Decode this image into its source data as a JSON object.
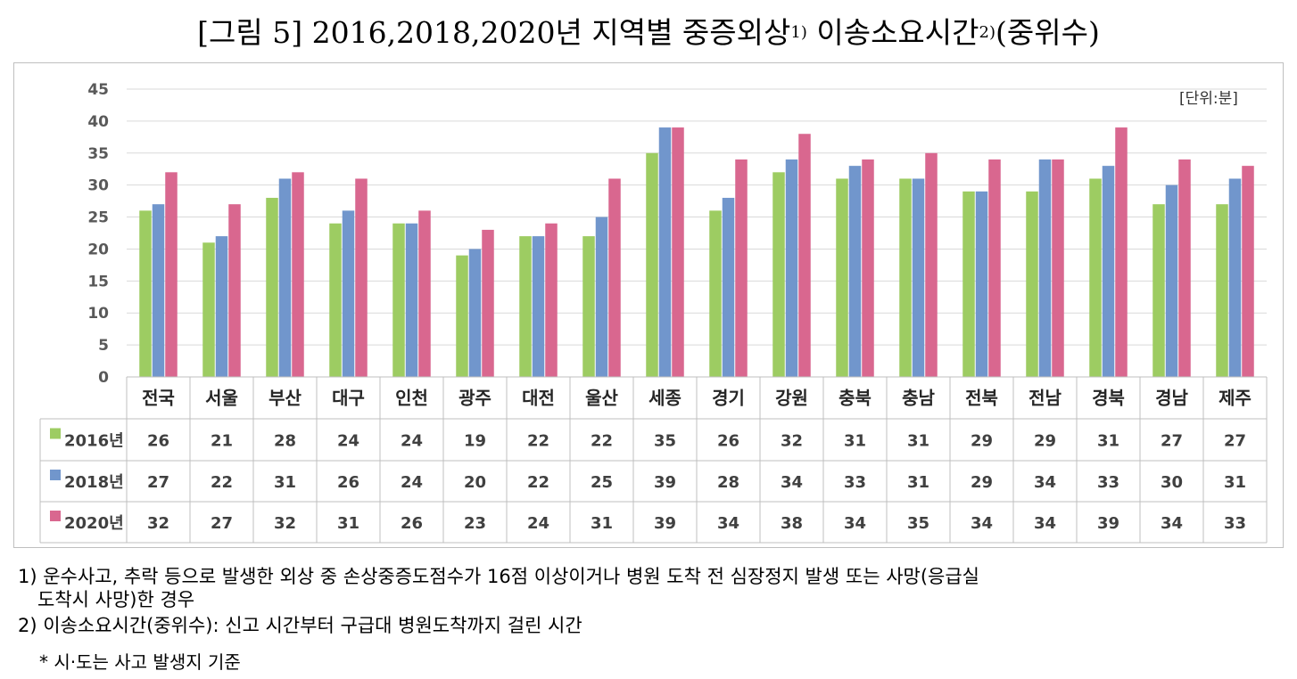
{
  "page": {
    "title_main": "[그림 5] 2016,2018,2020년 지역별 중증외상",
    "title_sup1": "1)",
    "title_mid": " 이송소요시간",
    "title_sup2": "2)",
    "title_end": "(중위수)",
    "unit": "[단위:분]"
  },
  "chart_data": {
    "type": "bar",
    "title": "[그림 5] 2016,2018,2020년 지역별 중증외상1) 이송소요시간2)(중위수)",
    "ylim": [
      0,
      45
    ],
    "yticks": [
      0,
      5,
      10,
      15,
      20,
      25,
      30,
      35,
      40,
      45
    ],
    "grid": true,
    "categories": [
      "전국",
      "서울",
      "부산",
      "대구",
      "인천",
      "광주",
      "대전",
      "울산",
      "세종",
      "경기",
      "강원",
      "충북",
      "충남",
      "전북",
      "전남",
      "경북",
      "경남",
      "제주"
    ],
    "series": [
      {
        "name": "2016년",
        "color": "#9dcc62",
        "values": [
          26,
          21,
          28,
          24,
          24,
          19,
          22,
          22,
          35,
          26,
          32,
          31,
          31,
          29,
          29,
          31,
          27,
          27
        ]
      },
      {
        "name": "2018년",
        "color": "#7196cc",
        "values": [
          27,
          22,
          31,
          26,
          24,
          20,
          22,
          25,
          39,
          28,
          34,
          33,
          31,
          29,
          34,
          33,
          30,
          31
        ]
      },
      {
        "name": "2020년",
        "color": "#d9678f",
        "values": [
          32,
          27,
          32,
          31,
          26,
          23,
          24,
          31,
          39,
          34,
          38,
          34,
          35,
          34,
          34,
          39,
          34,
          33
        ]
      }
    ]
  },
  "footnotes": {
    "note1_line1": "1) 운수사고, 추락 등으로 발생한 외상 중 손상중증도점수가 16점 이상이거나 병원 도착 전 심장정지 발생 또는 사망(응급실",
    "note1_line2": "도착시 사망)한 경우",
    "note2": "2) 이송소요시간(중위수): 신고 시간부터 구급대 병원도착까지 걸린 시간",
    "note3": "* 시·도는 사고 발생지 기준"
  }
}
